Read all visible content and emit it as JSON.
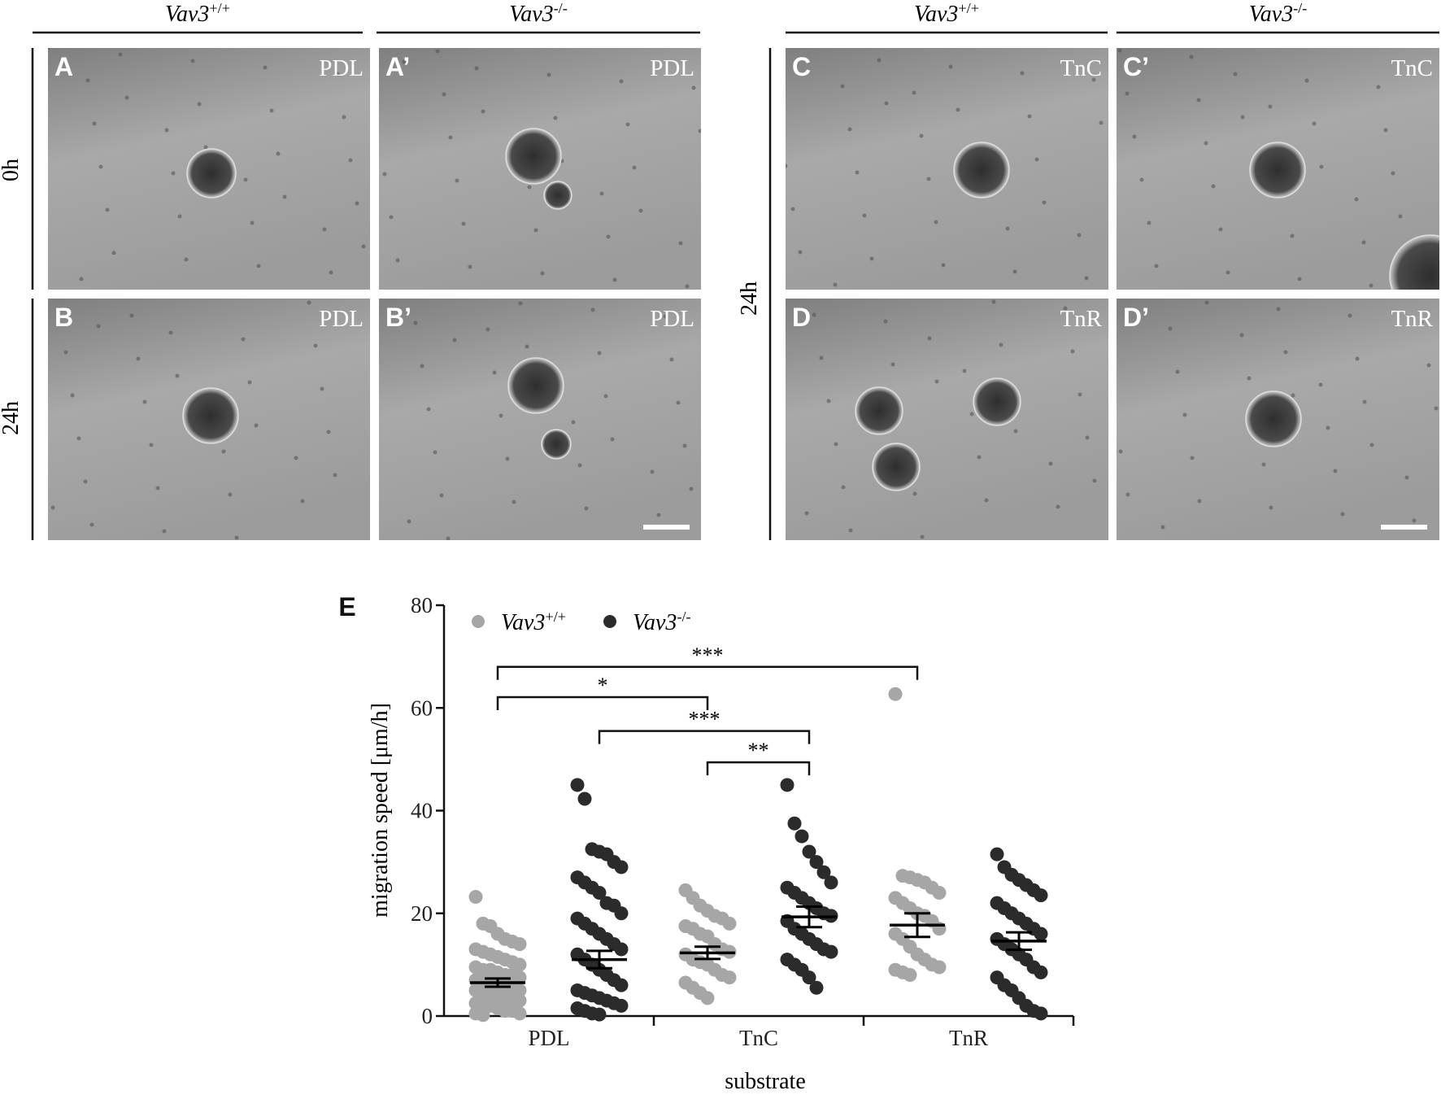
{
  "column_headers": [
    "Vav3+/+",
    "Vav3-/-",
    "Vav3+/+",
    "Vav3-/-"
  ],
  "row_labels": [
    "0h",
    "24h",
    "24h"
  ],
  "panels": [
    {
      "letter": "A",
      "label": "PDL"
    },
    {
      "letter": "A’",
      "label": "PDL"
    },
    {
      "letter": "B",
      "label": "PDL"
    },
    {
      "letter": "B’",
      "label": "PDL"
    },
    {
      "letter": "C",
      "label": "TnC"
    },
    {
      "letter": "C’",
      "label": "TnC"
    },
    {
      "letter": "D",
      "label": "TnR"
    },
    {
      "letter": "D’",
      "label": "TnR"
    }
  ],
  "chart_data": {
    "type": "dot",
    "panel_letter": "E",
    "x_label": "substrate",
    "y_label": "migration speed [μm/h]",
    "categories": [
      "PDL",
      "TnC",
      "TnR"
    ],
    "ylim": [
      0,
      80
    ],
    "yticks": [
      0,
      20,
      40,
      60,
      80
    ],
    "series": [
      {
        "name": "Vav3+/+",
        "color": "#a6a6a6",
        "values": [
          [
            23.2,
            18,
            17.5,
            16,
            15,
            14.5,
            14,
            13,
            12.5,
            12,
            11.5,
            11,
            10.5,
            10,
            9.5,
            9,
            9,
            8.5,
            8,
            8,
            7.5,
            7,
            7,
            6.5,
            6,
            6,
            5.5,
            5,
            5,
            4.5,
            4,
            4,
            3.5,
            3,
            3,
            2.5,
            2,
            2,
            1.5,
            1,
            1,
            0.5,
            0.5,
            0.2
          ],
          [
            24.5,
            23,
            21.5,
            20.5,
            19.5,
            19,
            18,
            17.5,
            17,
            16,
            15.5,
            14,
            13,
            12.5,
            12,
            11,
            10.5,
            10,
            9,
            8,
            7.5,
            6.5,
            5.5,
            4.5,
            3.5
          ],
          [
            62.7,
            27.3,
            27,
            26.5,
            26,
            25,
            24,
            23,
            22,
            21,
            20,
            19.5,
            18.5,
            17,
            16,
            15,
            13.5,
            12,
            11,
            10,
            9.5,
            9,
            8.5,
            8
          ]
        ],
        "means": [
          6.5,
          12.3,
          17.7
        ],
        "sems": [
          0.8,
          1.2,
          2.3
        ]
      },
      {
        "name": "Vav3-/-",
        "color": "#2b2b2b",
        "values": [
          [
            45,
            42.3,
            32.5,
            32,
            31.5,
            30,
            29,
            27,
            26,
            25,
            24,
            22,
            21.5,
            20,
            19,
            18,
            17,
            16,
            15,
            14,
            13,
            12,
            11,
            10,
            9,
            8,
            7,
            6,
            5,
            4.5,
            4,
            3.5,
            3,
            2.5,
            2,
            1.5,
            1,
            0.5,
            0.3
          ],
          [
            45,
            37.5,
            35,
            32,
            30,
            28,
            26,
            25,
            24,
            23,
            22,
            21,
            20,
            19.5,
            18.5,
            17,
            16,
            15,
            14,
            13,
            12.5,
            11,
            10,
            9,
            7.5,
            5.5
          ],
          [
            31.5,
            29,
            27.5,
            26.5,
            25.5,
            24.5,
            23.5,
            22,
            21,
            20,
            19,
            18,
            17,
            16,
            15,
            14,
            13,
            12,
            11,
            9.5,
            8.5,
            7.5,
            6,
            5,
            3.5,
            2,
            1,
            0.5
          ]
        ],
        "means": [
          11,
          19.3,
          14.6
        ],
        "sems": [
          1.7,
          2,
          1.7
        ]
      }
    ],
    "significance": [
      {
        "label": "***",
        "from": [
          0,
          0
        ],
        "to": [
          2,
          0
        ],
        "y": 68
      },
      {
        "label": "*",
        "from": [
          0,
          0
        ],
        "to": [
          1,
          0
        ],
        "y": 62.1
      },
      {
        "label": "***",
        "from": [
          0,
          1
        ],
        "to": [
          1,
          1
        ],
        "y": 55.5
      },
      {
        "label": "**",
        "from": [
          1,
          0
        ],
        "to": [
          1,
          1
        ],
        "y": 49.4
      }
    ]
  }
}
